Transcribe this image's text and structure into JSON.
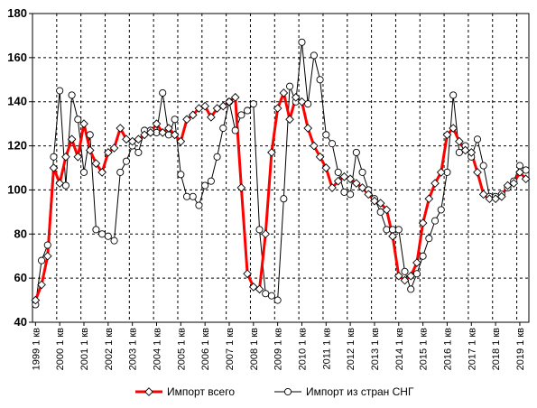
{
  "chart_data": {
    "type": "line",
    "ylim": [
      40,
      180
    ],
    "y_ticks": [
      40,
      60,
      80,
      100,
      120,
      140,
      160,
      180
    ],
    "grid": true,
    "legend_position": "bottom",
    "x_tick_labels": [
      "1999 1 кв",
      "2000 1 кв",
      "2001 1 кв",
      "2002 1 кв",
      "2003 1 кв",
      "2004 1 кв",
      "2005 1 кв",
      "2006 1 кв",
      "2007 1 кв",
      "2008 1 кв",
      "2009 1 кв",
      "2010 1 кв",
      "2011 1 кв",
      "2012 1 кв",
      "2013 1 кв",
      "2014 1 кв",
      "2015 1 кв",
      "2016 1 кв",
      "2017 1 кв",
      "2018 1 кв",
      "2019 1 кв"
    ],
    "series": [
      {
        "name": "Импорт всего",
        "color": "#ff0000",
        "marker": "diamond",
        "values": [
          50,
          57,
          70,
          110,
          103,
          115,
          123,
          115,
          130,
          118,
          112,
          108,
          117,
          119,
          128,
          123,
          122,
          123,
          125,
          126,
          130,
          126,
          128,
          125,
          122,
          132,
          134,
          137,
          138,
          133,
          137,
          138,
          140,
          142,
          101,
          62,
          56,
          55,
          80,
          117,
          137,
          144,
          132,
          142,
          140,
          128,
          120,
          115,
          110,
          101,
          104,
          106,
          105,
          103,
          101,
          98,
          95,
          94,
          91,
          79,
          61,
          59,
          61,
          67,
          85,
          96,
          103,
          108,
          125,
          128,
          122,
          118,
          117,
          108,
          98,
          96,
          96,
          97,
          102,
          103,
          108,
          105
        ]
      },
      {
        "name": "Импорт из стран СНГ",
        "color": "#000000",
        "marker": "circle",
        "values": [
          48,
          68,
          75,
          115,
          145,
          102,
          143,
          132,
          108,
          125,
          82,
          80,
          79,
          77,
          108,
          113,
          120,
          117,
          127,
          127,
          126,
          144,
          125,
          132,
          107,
          97,
          97,
          93,
          102,
          104,
          115,
          128,
          140,
          127,
          134,
          136,
          139,
          82,
          53,
          52,
          50,
          96,
          147,
          140,
          167,
          139,
          161,
          150,
          125,
          121,
          108,
          99,
          98,
          117,
          108,
          100,
          96,
          90,
          82,
          82,
          82,
          63,
          55,
          62,
          70,
          78,
          86,
          91,
          108,
          143,
          117,
          120,
          115,
          123,
          111,
          97,
          97,
          98,
          101,
          104,
          111,
          109
        ]
      }
    ]
  }
}
